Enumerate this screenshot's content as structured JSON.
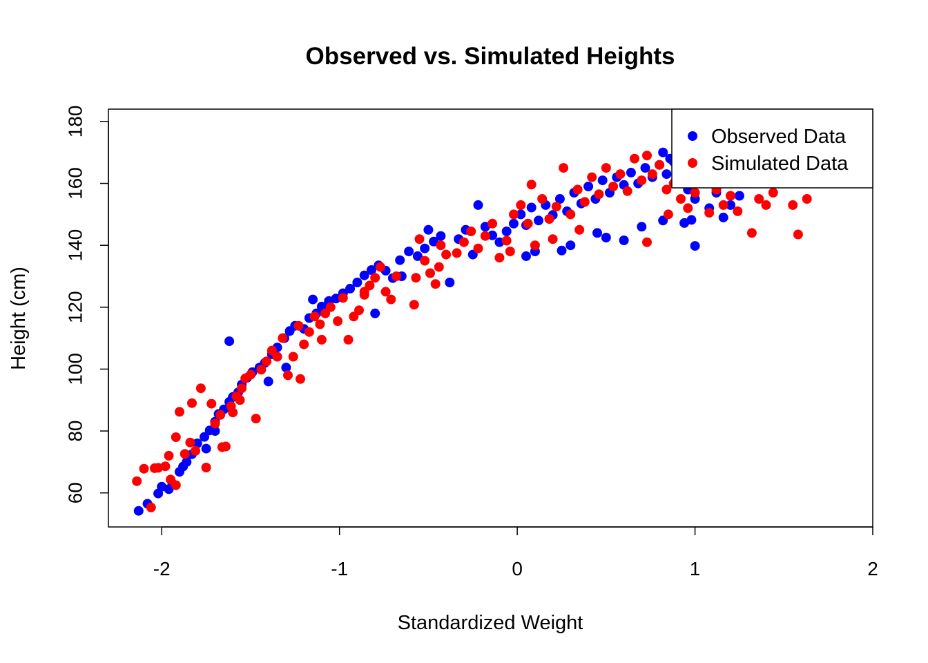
{
  "chart_data": {
    "type": "scatter",
    "title": "Observed vs. Simulated Heights",
    "xlabel": "Standardized Weight",
    "ylabel": "Height (cm)",
    "xlim": [
      -2.3,
      2.0
    ],
    "ylim": [
      49,
      184
    ],
    "x_ticks": [
      -2,
      -1,
      0,
      1,
      2
    ],
    "x_tick_labels": [
      "-2",
      "-1",
      "0",
      "1",
      "2"
    ],
    "y_ticks": [
      60,
      80,
      100,
      120,
      140,
      160,
      180
    ],
    "y_tick_labels": [
      "60",
      "80",
      "100",
      "120",
      "140",
      "160",
      "180"
    ],
    "grid": false,
    "legend_position": "top-right",
    "series": [
      {
        "name": "Observed Data",
        "color": "#0000ff",
        "points": [
          [
            -2.13,
            54.2
          ],
          [
            -2.08,
            56.5
          ],
          [
            -2.02,
            59.8
          ],
          [
            -1.96,
            61.2
          ],
          [
            -1.94,
            63.0
          ],
          [
            -1.9,
            66.8
          ],
          [
            -1.86,
            70.0
          ],
          [
            -1.83,
            72.5
          ],
          [
            -1.8,
            76.0
          ],
          [
            -1.76,
            78.1
          ],
          [
            -1.73,
            80.2
          ],
          [
            -1.7,
            83.0
          ],
          [
            -1.68,
            85.5
          ],
          [
            -1.65,
            87.0
          ],
          [
            -1.62,
            89.4
          ],
          [
            -1.6,
            91.0
          ],
          [
            -1.57,
            92.5
          ],
          [
            -1.55,
            95.0
          ],
          [
            -1.52,
            97.2
          ],
          [
            -1.49,
            99.0
          ],
          [
            -1.62,
            109.0
          ],
          [
            -1.45,
            100.5
          ],
          [
            -1.42,
            102.0
          ],
          [
            -1.38,
            104.8
          ],
          [
            -1.35,
            107.0
          ],
          [
            -1.31,
            110.0
          ],
          [
            -1.28,
            112.3
          ],
          [
            -1.25,
            114.0
          ],
          [
            -1.2,
            113.0
          ],
          [
            -1.17,
            116.5
          ],
          [
            -1.13,
            118.0
          ],
          [
            -1.1,
            120.2
          ],
          [
            -1.06,
            122.0
          ],
          [
            -1.02,
            122.8
          ],
          [
            -0.98,
            124.5
          ],
          [
            -0.94,
            126.0
          ],
          [
            -0.9,
            128.0
          ],
          [
            -0.86,
            130.3
          ],
          [
            -0.82,
            132.0
          ],
          [
            -0.78,
            133.5
          ],
          [
            -0.74,
            131.8
          ],
          [
            -0.7,
            129.4
          ],
          [
            -0.66,
            135.2
          ],
          [
            -0.61,
            138.0
          ],
          [
            -0.56,
            136.5
          ],
          [
            -0.52,
            139.0
          ],
          [
            -0.47,
            141.2
          ],
          [
            -0.43,
            143.0
          ],
          [
            -0.38,
            128.0
          ],
          [
            -0.33,
            142.0
          ],
          [
            -0.29,
            145.0
          ],
          [
            -0.25,
            137.0
          ],
          [
            -0.22,
            153.0
          ],
          [
            -0.18,
            146.0
          ],
          [
            -0.14,
            143.2
          ],
          [
            -0.1,
            141.0
          ],
          [
            -0.06,
            144.5
          ],
          [
            -0.02,
            147.0
          ],
          [
            0.02,
            150.0
          ],
          [
            0.05,
            146.5
          ],
          [
            0.08,
            152.2
          ],
          [
            0.12,
            148.0
          ],
          [
            0.16,
            153.0
          ],
          [
            0.2,
            149.8
          ],
          [
            0.24,
            155.0
          ],
          [
            0.28,
            151.0
          ],
          [
            0.32,
            157.0
          ],
          [
            0.36,
            153.5
          ],
          [
            0.4,
            159.0
          ],
          [
            0.44,
            155.0
          ],
          [
            0.48,
            161.0
          ],
          [
            0.52,
            157.0
          ],
          [
            0.56,
            162.0
          ],
          [
            0.6,
            159.5
          ],
          [
            0.64,
            163.5
          ],
          [
            0.68,
            160.0
          ],
          [
            0.72,
            165.0
          ],
          [
            0.76,
            162.0
          ],
          [
            0.8,
            166.0
          ],
          [
            0.84,
            163.0
          ],
          [
            0.88,
            167.0
          ],
          [
            0.82,
            170.0
          ],
          [
            0.86,
            168.0
          ],
          [
            0.92,
            163.0
          ],
          [
            0.96,
            158.0
          ],
          [
            1.0,
            155.0
          ],
          [
            1.04,
            160.0
          ],
          [
            1.08,
            152.0
          ],
          [
            1.12,
            157.0
          ],
          [
            1.16,
            149.0
          ],
          [
            1.2,
            153.0
          ],
          [
            1.25,
            156.0
          ],
          [
            1.0,
            139.8
          ],
          [
            0.94,
            147.2
          ],
          [
            0.98,
            148.2
          ],
          [
            0.82,
            148.0
          ],
          [
            0.6,
            141.6
          ],
          [
            0.5,
            142.5
          ],
          [
            0.3,
            140.0
          ],
          [
            0.1,
            138.0
          ],
          [
            0.05,
            136.5
          ],
          [
            0.25,
            138.3
          ],
          [
            0.45,
            144.0
          ],
          [
            0.7,
            146.0
          ],
          [
            -1.7,
            80.0
          ],
          [
            -1.75,
            74.3
          ],
          [
            -1.88,
            68.5
          ],
          [
            -2.0,
            62.0
          ],
          [
            -1.3,
            100.5
          ],
          [
            -1.4,
            96.0
          ],
          [
            -1.15,
            122.5
          ],
          [
            -0.8,
            118.0
          ],
          [
            -0.65,
            130.0
          ],
          [
            -0.5,
            145.0
          ]
        ]
      },
      {
        "name": "Simulated Data",
        "color": "#ff0000",
        "points": [
          [
            -2.14,
            63.8
          ],
          [
            -2.1,
            67.8
          ],
          [
            -2.06,
            55.3
          ],
          [
            -2.02,
            68.1
          ],
          [
            -1.98,
            68.6
          ],
          [
            -1.95,
            64.3
          ],
          [
            -1.92,
            62.5
          ],
          [
            -1.9,
            86.2
          ],
          [
            -1.87,
            72.6
          ],
          [
            -1.84,
            76.3
          ],
          [
            -1.81,
            73.6
          ],
          [
            -1.78,
            93.8
          ],
          [
            -1.75,
            68.2
          ],
          [
            -1.72,
            88.8
          ],
          [
            -1.7,
            82.4
          ],
          [
            -1.67,
            85.2
          ],
          [
            -1.64,
            75.0
          ],
          [
            -1.61,
            88.0
          ],
          [
            -1.58,
            91.2
          ],
          [
            -1.55,
            93.8
          ],
          [
            -1.53,
            97.0
          ],
          [
            -1.5,
            98.2
          ],
          [
            -1.47,
            84.0
          ],
          [
            -1.44,
            99.8
          ],
          [
            -1.41,
            102.5
          ],
          [
            -1.38,
            106.0
          ],
          [
            -1.35,
            104.0
          ],
          [
            -1.32,
            110.0
          ],
          [
            -1.29,
            98.0
          ],
          [
            -1.26,
            104.0
          ],
          [
            -1.23,
            114.0
          ],
          [
            -1.2,
            108.0
          ],
          [
            -1.17,
            112.0
          ],
          [
            -1.14,
            117.0
          ],
          [
            -1.11,
            114.5
          ],
          [
            -1.08,
            118.0
          ],
          [
            -1.05,
            120.0
          ],
          [
            -1.01,
            115.5
          ],
          [
            -0.98,
            123.0
          ],
          [
            -0.95,
            109.5
          ],
          [
            -0.92,
            117.0
          ],
          [
            -0.89,
            119.0
          ],
          [
            -0.86,
            124.0
          ],
          [
            -0.83,
            127.0
          ],
          [
            -0.8,
            129.5
          ],
          [
            -0.77,
            133.0
          ],
          [
            -0.74,
            125.0
          ],
          [
            -0.71,
            122.5
          ],
          [
            -0.68,
            130.0
          ],
          [
            -0.58,
            120.8
          ],
          [
            -0.57,
            129.5
          ],
          [
            -0.55,
            142.0
          ],
          [
            -0.52,
            135.0
          ],
          [
            -0.49,
            131.0
          ],
          [
            -0.46,
            127.5
          ],
          [
            -0.43,
            140.0
          ],
          [
            -0.4,
            137.0
          ],
          [
            -0.3,
            141.0
          ],
          [
            -0.26,
            144.5
          ],
          [
            -0.22,
            139.0
          ],
          [
            -0.18,
            143.0
          ],
          [
            -0.14,
            147.0
          ],
          [
            -0.1,
            136.0
          ],
          [
            -0.06,
            141.5
          ],
          [
            -0.02,
            150.0
          ],
          [
            0.02,
            153.0
          ],
          [
            0.06,
            147.0
          ],
          [
            0.1,
            140.0
          ],
          [
            0.14,
            155.0
          ],
          [
            0.18,
            148.5
          ],
          [
            0.22,
            152.5
          ],
          [
            0.26,
            165.0
          ],
          [
            0.3,
            150.0
          ],
          [
            0.34,
            158.0
          ],
          [
            0.38,
            154.0
          ],
          [
            0.42,
            162.0
          ],
          [
            0.46,
            156.5
          ],
          [
            0.5,
            165.0
          ],
          [
            0.54,
            159.0
          ],
          [
            0.58,
            163.0
          ],
          [
            0.62,
            157.5
          ],
          [
            0.66,
            168.0
          ],
          [
            0.7,
            161.0
          ],
          [
            0.73,
            169.0
          ],
          [
            0.76,
            163.0
          ],
          [
            0.8,
            166.0
          ],
          [
            0.84,
            158.0
          ],
          [
            0.88,
            160.0
          ],
          [
            0.92,
            155.0
          ],
          [
            0.96,
            152.0
          ],
          [
            1.0,
            157.0
          ],
          [
            1.04,
            162.0
          ],
          [
            1.08,
            150.5
          ],
          [
            1.12,
            158.0
          ],
          [
            1.16,
            153.0
          ],
          [
            1.2,
            156.0
          ],
          [
            1.24,
            151.0
          ],
          [
            1.28,
            160.0
          ],
          [
            1.32,
            144.0
          ],
          [
            1.36,
            155.0
          ],
          [
            1.4,
            153.0
          ],
          [
            1.44,
            157.0
          ],
          [
            1.55,
            153.0
          ],
          [
            1.58,
            143.5
          ],
          [
            1.63,
            155.0
          ],
          [
            0.73,
            141.0
          ],
          [
            0.85,
            150.0
          ],
          [
            0.35,
            145.0
          ],
          [
            0.2,
            142.0
          ],
          [
            0.08,
            159.6
          ],
          [
            -0.04,
            138.0
          ],
          [
            -1.56,
            90.0
          ],
          [
            -1.6,
            86.0
          ],
          [
            -1.66,
            74.8
          ],
          [
            -1.83,
            89.0
          ],
          [
            -1.92,
            78.0
          ],
          [
            -1.96,
            72.0
          ],
          [
            -2.04,
            68.0
          ],
          [
            -1.22,
            96.8
          ],
          [
            -1.1,
            109.5
          ],
          [
            -0.86,
            125.0
          ],
          [
            -0.44,
            133.0
          ],
          [
            -0.34,
            137.5
          ]
        ]
      }
    ]
  }
}
